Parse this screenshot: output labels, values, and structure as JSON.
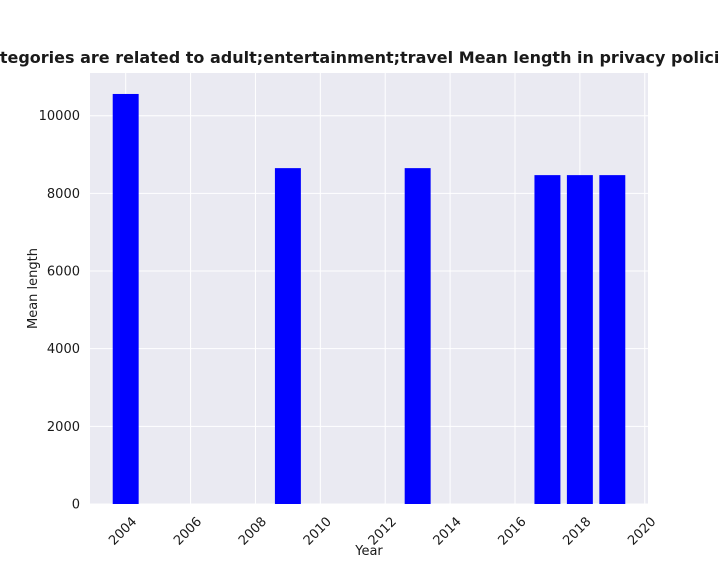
{
  "chart_data": {
    "type": "bar",
    "title": "when categories are related to adult;entertainment;travel Mean length in privacy policies by Year",
    "xlabel": "Year",
    "ylabel": "Mean length",
    "x": [
      2004,
      2009,
      2013,
      2017,
      2018,
      2019
    ],
    "values": [
      10560,
      8650,
      8650,
      8470,
      8470,
      8470
    ],
    "xlim": [
      2002.9,
      2020.1
    ],
    "ylim": [
      0,
      11100
    ],
    "xticks": [
      2004,
      2006,
      2008,
      2010,
      2012,
      2014,
      2016,
      2018,
      2020
    ],
    "yticks": [
      0,
      2000,
      4000,
      6000,
      8000,
      10000
    ],
    "bar_width": 0.8,
    "bar_color": "#0000ff",
    "background_color": "#eaeaf2",
    "grid": true
  }
}
